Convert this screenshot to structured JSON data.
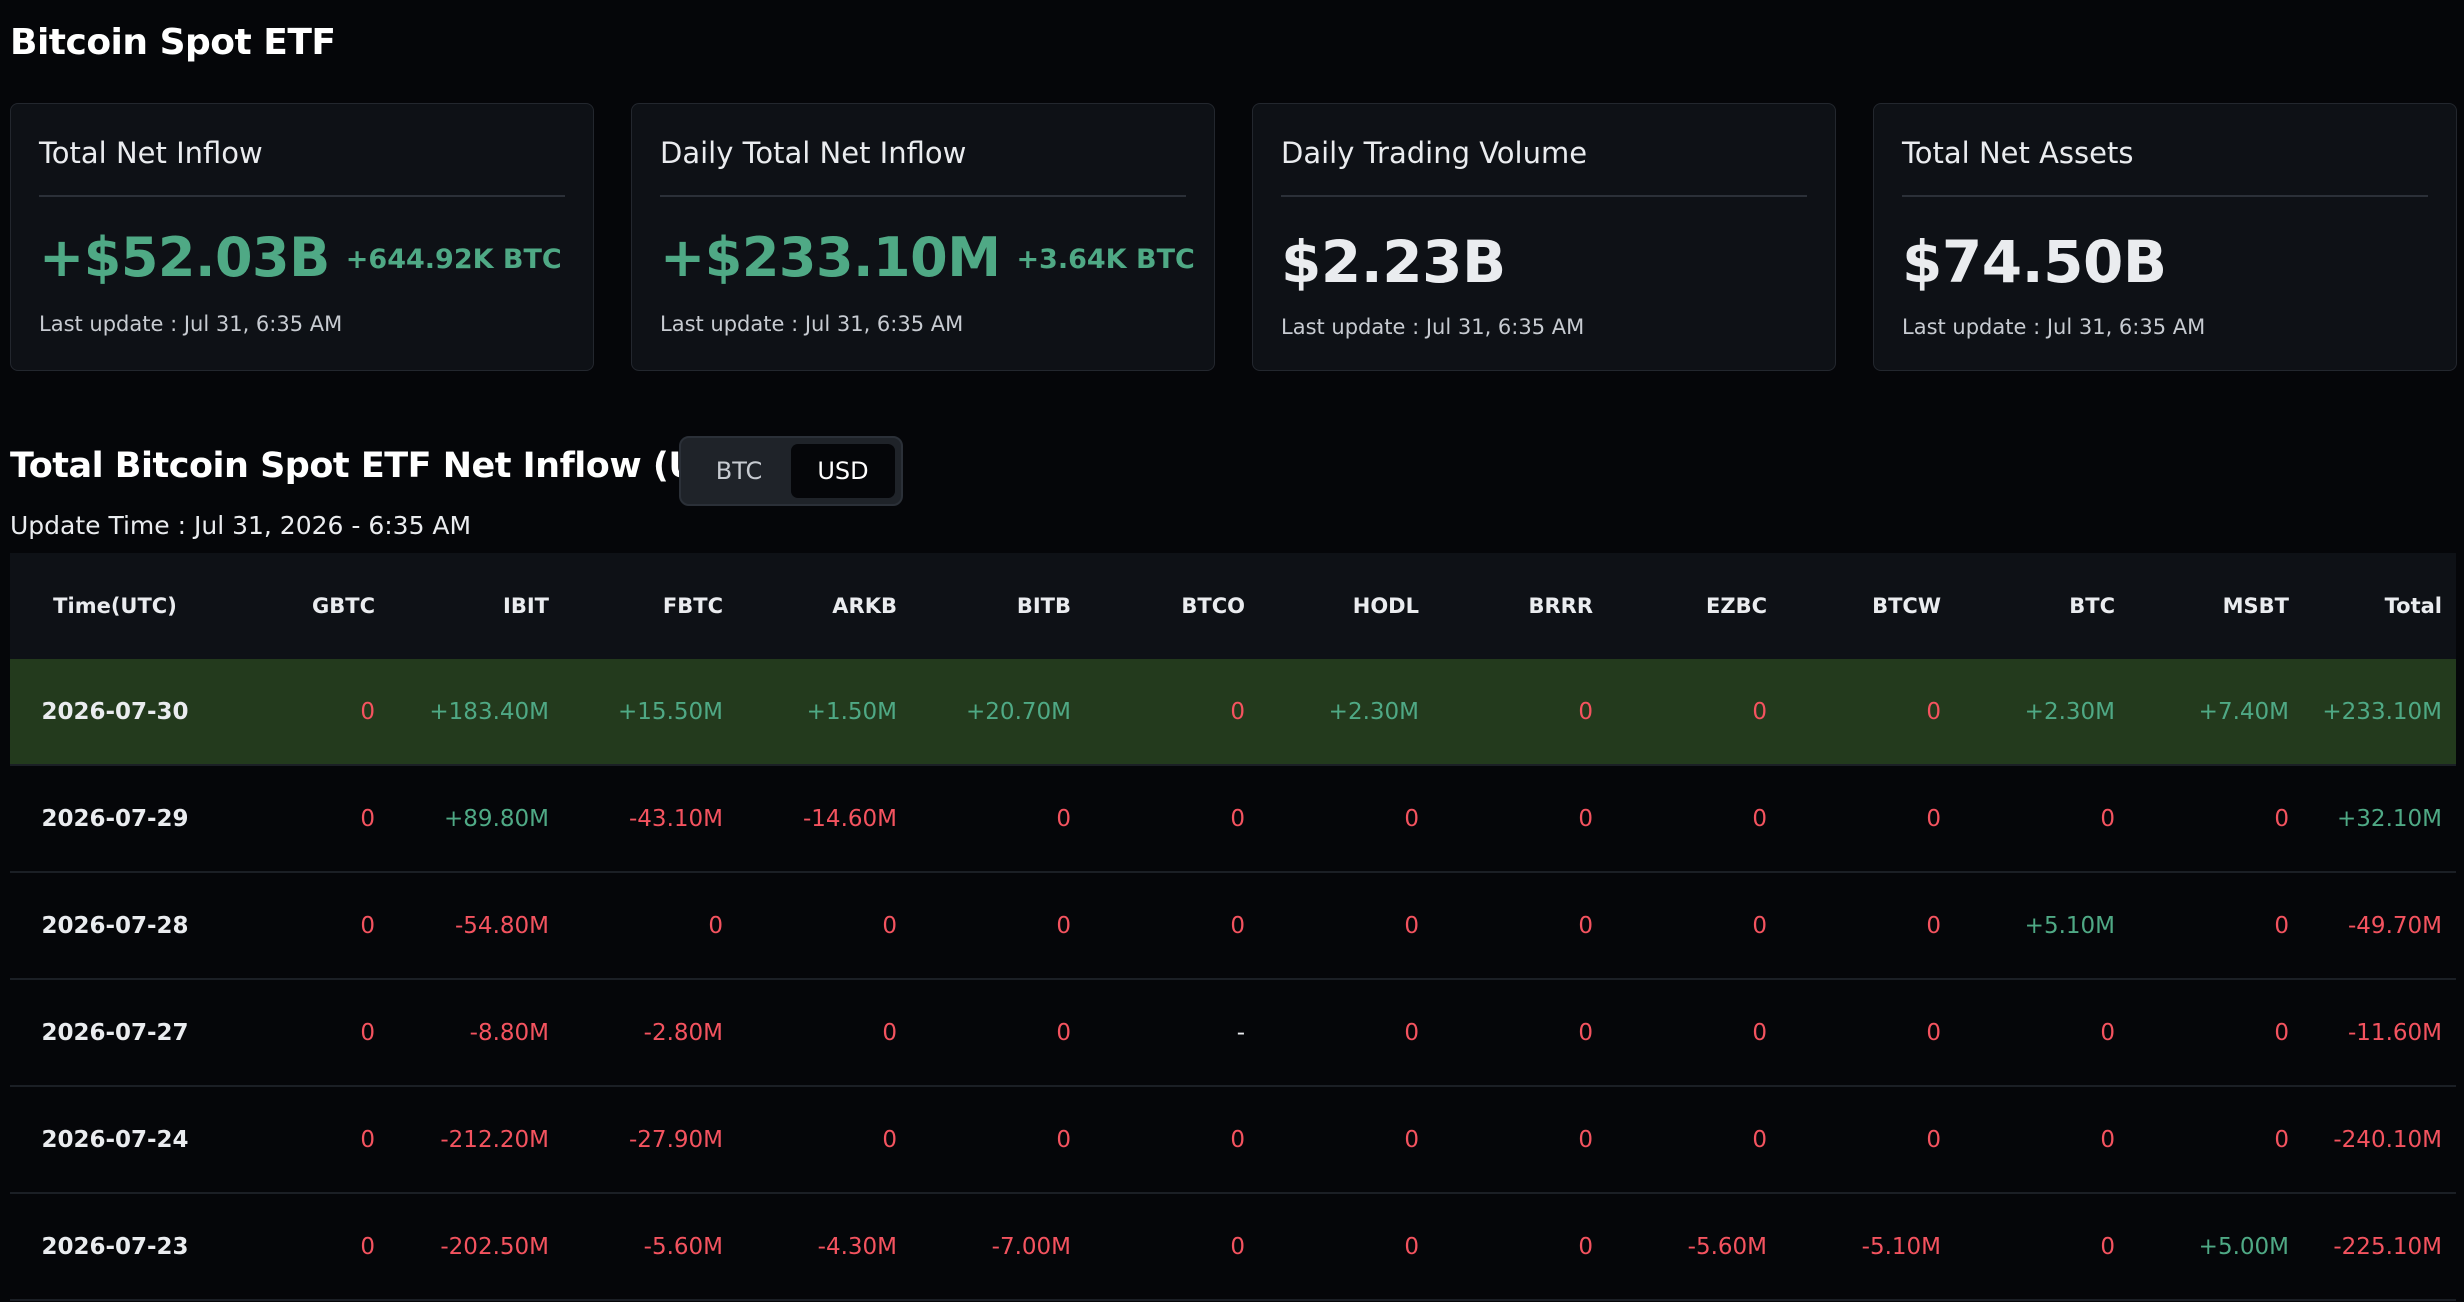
{
  "page": {
    "title": "Bitcoin Spot ETF"
  },
  "cards": [
    {
      "title": "Total Net Inflow",
      "value": "+$52.03B",
      "sub": "+644.92K BTC",
      "update": "Last update : Jul 31, 6:35 AM",
      "tone": "pos"
    },
    {
      "title": "Daily Total Net Inflow",
      "value": "+$233.10M",
      "sub": "+3.64K BTC",
      "update": "Last update : Jul 31, 6:35 AM",
      "tone": "pos"
    },
    {
      "title": "Daily Trading Volume",
      "value": "$2.23B",
      "sub": "",
      "update": "Last update : Jul 31, 6:35 AM",
      "tone": "neu"
    },
    {
      "title": "Total Net Assets",
      "value": "$74.50B",
      "sub": "",
      "update": "Last update : Jul 31, 6:35 AM",
      "tone": "neu"
    }
  ],
  "section": {
    "title": "Total Bitcoin Spot ETF Net Inflow (USD)",
    "toggle": {
      "btc_label": "BTC",
      "usd_label": "USD",
      "selected": "USD"
    },
    "update_time": "Update Time : Jul 31, 2026 - 6:35 AM"
  },
  "colors": {
    "positive": "#4fa985",
    "negative": "#f4535f",
    "highlight_row": "#233a1d"
  },
  "table": {
    "columns": [
      "Time(UTC)",
      "GBTC",
      "IBIT",
      "FBTC",
      "ARKB",
      "BITB",
      "BTCO",
      "HODL",
      "BRRR",
      "EZBC",
      "BTCW",
      "BTC",
      "MSBT",
      "Total"
    ],
    "rows": [
      {
        "date": "2026-07-30",
        "highlight": true,
        "values": [
          "0",
          "+183.40M",
          "+15.50M",
          "+1.50M",
          "+20.70M",
          "0",
          "+2.30M",
          "0",
          "0",
          "0",
          "+2.30M",
          "+7.40M",
          "+233.10M"
        ]
      },
      {
        "date": "2026-07-29",
        "highlight": false,
        "values": [
          "0",
          "+89.80M",
          "-43.10M",
          "-14.60M",
          "0",
          "0",
          "0",
          "0",
          "0",
          "0",
          "0",
          "0",
          "+32.10M"
        ]
      },
      {
        "date": "2026-07-28",
        "highlight": false,
        "values": [
          "0",
          "-54.80M",
          "0",
          "0",
          "0",
          "0",
          "0",
          "0",
          "0",
          "0",
          "+5.10M",
          "0",
          "-49.70M"
        ]
      },
      {
        "date": "2026-07-27",
        "highlight": false,
        "values": [
          "0",
          "-8.80M",
          "-2.80M",
          "0",
          "0",
          "-",
          "0",
          "0",
          "0",
          "0",
          "0",
          "0",
          "-11.60M"
        ]
      },
      {
        "date": "2026-07-24",
        "highlight": false,
        "values": [
          "0",
          "-212.20M",
          "-27.90M",
          "0",
          "0",
          "0",
          "0",
          "0",
          "0",
          "0",
          "0",
          "0",
          "-240.10M"
        ]
      },
      {
        "date": "2026-07-23",
        "highlight": false,
        "values": [
          "0",
          "-202.50M",
          "-5.60M",
          "-4.30M",
          "-7.00M",
          "0",
          "0",
          "0",
          "-5.60M",
          "-5.10M",
          "0",
          "+5.00M",
          "-225.10M"
        ]
      }
    ]
  }
}
